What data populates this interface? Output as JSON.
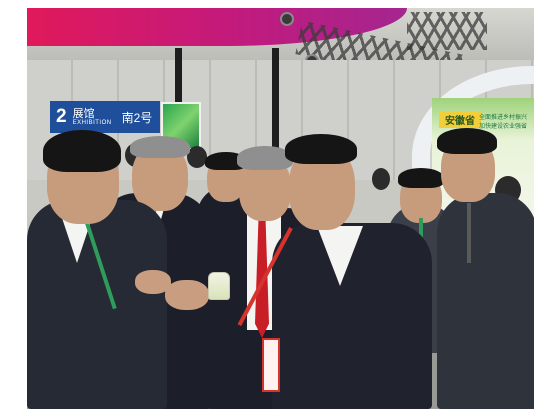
{
  "signage": {
    "hall_number": "2",
    "hall_label_zh": "展馆",
    "hall_label_en": "EXHIBITION",
    "hall_south": "南2号"
  },
  "booth": {
    "title": "安徽省",
    "subtitle": "全面推进乡村振兴 加快建设农业强省"
  },
  "colors": {
    "banner": "#c21a7d",
    "hall_sign": "#1f4f9a",
    "booth_title_bg": "#f2cf38",
    "lanyard_green": "#2e9c5a",
    "lanyard_red": "#d6332d",
    "tie_red": "#c81e26",
    "tie_blue": "#5b7fb3"
  }
}
